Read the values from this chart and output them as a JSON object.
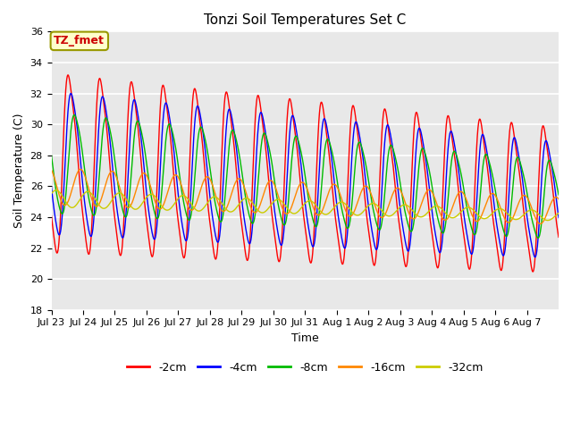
{
  "title": "Tonzi Soil Temperatures Set C",
  "xlabel": "Time",
  "ylabel": "Soil Temperature (C)",
  "ylim": [
    18,
    36
  ],
  "yticks": [
    18,
    20,
    22,
    24,
    26,
    28,
    30,
    32,
    34,
    36
  ],
  "series": [
    {
      "label": "-2cm",
      "color": "#ff0000"
    },
    {
      "label": "-4cm",
      "color": "#0000ff"
    },
    {
      "label": "-8cm",
      "color": "#00bb00"
    },
    {
      "label": "-16cm",
      "color": "#ff8800"
    },
    {
      "label": "-32cm",
      "color": "#cccc00"
    }
  ],
  "annotation_text": "TZ_fmet",
  "annotation_color": "#cc0000",
  "annotation_bg": "#ffffcc",
  "annotation_border": "#999900",
  "plot_bg": "#e8e8e8",
  "fig_bg": "#ffffff",
  "grid_color": "#ffffff",
  "tick_labels": [
    "Jul 23",
    "Jul 24",
    "Jul 25",
    "Jul 26",
    "Jul 27",
    "Jul 28",
    "Jul 29",
    "Jul 30",
    "Jul 31",
    "Aug 1",
    "Aug 2",
    "Aug 3",
    "Aug 4",
    "Aug 5",
    "Aug 6",
    "Aug 7"
  ],
  "n_days": 16,
  "points_per_day": 144
}
